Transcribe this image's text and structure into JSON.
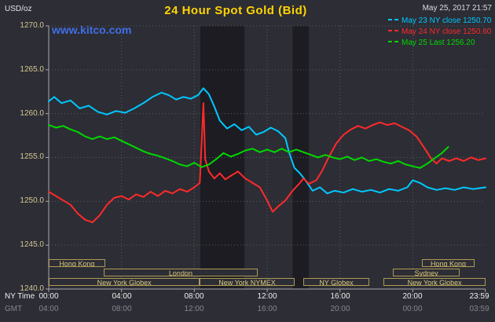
{
  "header": {
    "title": "24 Hour Spot Gold (Bid)",
    "datetime": "May 25, 2017 21:57",
    "unit_label": "USD/oz",
    "watermark": "www.kitco.com"
  },
  "legend": {
    "entries": [
      {
        "label": "May 23 NY close 1250.70",
        "color": "#00c8ff"
      },
      {
        "label": "May 24 NY close 1250.60",
        "color": "#ff2a2a"
      },
      {
        "label": "May 25 Last 1256.20",
        "color": "#00d800"
      }
    ],
    "position": "top-right"
  },
  "axes": {
    "y_ticks": [
      "1270.0",
      "1265.0",
      "1260.0",
      "1255.0",
      "1250.0",
      "1245.0",
      "1240.0"
    ],
    "x_ticks_ny": [
      "00:00",
      "04:00",
      "08:00",
      "12:00",
      "16:00",
      "20:00",
      "23:59"
    ],
    "x_ticks_gmt": [
      "04:00",
      "08:00",
      "12:00",
      "16:00",
      "20:00",
      "00:00",
      "03:59"
    ],
    "x_caption_ny": "NY Time",
    "x_caption_gmt": "GMT"
  },
  "sessions": [
    {
      "label": "Hong Kong",
      "row": 0,
      "start": 0.0,
      "end": 3.1
    },
    {
      "label": "Hong Kong",
      "row": 0,
      "start": 20.5,
      "end": 23.4
    },
    {
      "label": "London",
      "row": 1,
      "start": 3.0,
      "end": 11.5
    },
    {
      "label": "Sydney",
      "row": 1,
      "start": 18.9,
      "end": 22.6
    },
    {
      "label": "New York Globex",
      "row": 2,
      "start": 0.0,
      "end": 8.3
    },
    {
      "label": "New York NYMEX",
      "row": 2,
      "start": 8.3,
      "end": 13.5
    },
    {
      "label": "NY Globex",
      "row": 2,
      "start": 14.0,
      "end": 17.6
    },
    {
      "label": "New York Globex",
      "row": 2,
      "start": 18.4,
      "end": 24.0
    }
  ],
  "colors": {
    "background": "#2d2d35",
    "shaded_band": "#1c1c22",
    "grid": "#5a5a64",
    "axis": "#a8a8b0",
    "y_tick_label": "#d2c893",
    "x_tick_label_ny": "#efefef",
    "x_tick_label_gmt": "#86868e",
    "session": "#c9b96a",
    "title": "#ffd400",
    "watermark": "#3f6fe8"
  },
  "chart_data": {
    "type": "line",
    "title": "24 Hour Spot Gold (Bid)",
    "ylabel": "USD/oz",
    "xlabel": "NY Time (hours)",
    "xlim": [
      0,
      24
    ],
    "ylim": [
      1240,
      1270
    ],
    "grid": true,
    "x_gridline_hours": [
      0,
      4,
      8,
      12,
      16,
      20
    ],
    "y_gridline_step": 5,
    "shaded_bands_x": [
      [
        8.33,
        10.75
      ],
      [
        13.4,
        14.3
      ]
    ],
    "series": [
      {
        "name": "May 23",
        "close_label": "NY close 1250.70",
        "close": 1250.7,
        "color": "#00c8ff",
        "points": [
          [
            0,
            1261.4
          ],
          [
            0.3,
            1261.9
          ],
          [
            0.7,
            1261.2
          ],
          [
            1.2,
            1261.5
          ],
          [
            1.7,
            1260.6
          ],
          [
            2.2,
            1260.9
          ],
          [
            2.7,
            1260.2
          ],
          [
            3.2,
            1259.9
          ],
          [
            3.7,
            1260.3
          ],
          [
            4.2,
            1260.1
          ],
          [
            4.7,
            1260.6
          ],
          [
            5.2,
            1261.2
          ],
          [
            5.7,
            1261.9
          ],
          [
            6.2,
            1262.4
          ],
          [
            6.6,
            1262.1
          ],
          [
            7.0,
            1261.6
          ],
          [
            7.4,
            1261.9
          ],
          [
            7.8,
            1261.7
          ],
          [
            8.2,
            1262.1
          ],
          [
            8.5,
            1262.9
          ],
          [
            8.8,
            1262.2
          ],
          [
            9.1,
            1260.8
          ],
          [
            9.4,
            1259.2
          ],
          [
            9.8,
            1258.3
          ],
          [
            10.2,
            1258.8
          ],
          [
            10.6,
            1258.1
          ],
          [
            11.0,
            1258.5
          ],
          [
            11.4,
            1257.6
          ],
          [
            11.8,
            1257.9
          ],
          [
            12.2,
            1258.4
          ],
          [
            12.6,
            1258.0
          ],
          [
            13.0,
            1257.2
          ],
          [
            13.2,
            1255.6
          ],
          [
            13.5,
            1253.8
          ],
          [
            13.8,
            1253.2
          ],
          [
            14.1,
            1252.4
          ],
          [
            14.5,
            1251.2
          ],
          [
            14.9,
            1251.6
          ],
          [
            15.3,
            1250.9
          ],
          [
            15.7,
            1251.2
          ],
          [
            16.2,
            1251.0
          ],
          [
            16.7,
            1251.4
          ],
          [
            17.2,
            1251.1
          ],
          [
            17.7,
            1251.3
          ],
          [
            18.2,
            1251.0
          ],
          [
            18.7,
            1251.4
          ],
          [
            19.2,
            1251.2
          ],
          [
            19.7,
            1251.6
          ],
          [
            20.0,
            1252.4
          ],
          [
            20.4,
            1252.1
          ],
          [
            20.8,
            1251.6
          ],
          [
            21.3,
            1251.3
          ],
          [
            21.8,
            1251.5
          ],
          [
            22.3,
            1251.3
          ],
          [
            22.8,
            1251.6
          ],
          [
            23.3,
            1251.4
          ],
          [
            24,
            1251.6
          ]
        ]
      },
      {
        "name": "May 24",
        "close_label": "NY close 1250.60",
        "close": 1250.6,
        "color": "#ff2a2a",
        "points": [
          [
            0,
            1251.1
          ],
          [
            0.4,
            1250.6
          ],
          [
            0.8,
            1250.1
          ],
          [
            1.2,
            1249.6
          ],
          [
            1.6,
            1248.6
          ],
          [
            2.0,
            1247.9
          ],
          [
            2.4,
            1247.6
          ],
          [
            2.8,
            1248.4
          ],
          [
            3.2,
            1249.6
          ],
          [
            3.6,
            1250.4
          ],
          [
            4.0,
            1250.6
          ],
          [
            4.4,
            1250.2
          ],
          [
            4.8,
            1250.8
          ],
          [
            5.2,
            1250.5
          ],
          [
            5.6,
            1251.1
          ],
          [
            6.0,
            1250.6
          ],
          [
            6.4,
            1251.2
          ],
          [
            6.8,
            1250.9
          ],
          [
            7.2,
            1251.4
          ],
          [
            7.6,
            1251.1
          ],
          [
            8.0,
            1251.6
          ],
          [
            8.3,
            1252.1
          ],
          [
            8.5,
            1261.2
          ],
          [
            8.6,
            1254.8
          ],
          [
            8.8,
            1253.4
          ],
          [
            9.1,
            1252.6
          ],
          [
            9.4,
            1253.2
          ],
          [
            9.7,
            1252.5
          ],
          [
            10.0,
            1252.9
          ],
          [
            10.4,
            1253.4
          ],
          [
            10.8,
            1252.6
          ],
          [
            11.2,
            1252.1
          ],
          [
            11.6,
            1251.6
          ],
          [
            12.0,
            1250.1
          ],
          [
            12.3,
            1248.8
          ],
          [
            12.6,
            1249.4
          ],
          [
            13.0,
            1250.1
          ],
          [
            13.4,
            1251.2
          ],
          [
            13.8,
            1252.1
          ],
          [
            14.0,
            1252.6
          ],
          [
            14.3,
            1252.0
          ],
          [
            14.7,
            1252.4
          ],
          [
            15.0,
            1253.4
          ],
          [
            15.4,
            1255.1
          ],
          [
            15.8,
            1256.6
          ],
          [
            16.2,
            1257.6
          ],
          [
            16.6,
            1258.2
          ],
          [
            17.0,
            1258.6
          ],
          [
            17.4,
            1258.3
          ],
          [
            17.8,
            1258.7
          ],
          [
            18.2,
            1259.0
          ],
          [
            18.6,
            1258.7
          ],
          [
            19.0,
            1258.9
          ],
          [
            19.4,
            1258.5
          ],
          [
            19.8,
            1258.1
          ],
          [
            20.2,
            1257.4
          ],
          [
            20.6,
            1256.2
          ],
          [
            21.0,
            1254.9
          ],
          [
            21.3,
            1254.3
          ],
          [
            21.6,
            1254.9
          ],
          [
            22.0,
            1254.6
          ],
          [
            22.4,
            1254.9
          ],
          [
            22.8,
            1254.6
          ],
          [
            23.2,
            1255.0
          ],
          [
            23.6,
            1254.7
          ],
          [
            24,
            1254.9
          ]
        ]
      },
      {
        "name": "May 25",
        "close_label": "Last 1256.20",
        "last": 1256.2,
        "color": "#00d800",
        "points": [
          [
            0,
            1258.7
          ],
          [
            0.4,
            1258.4
          ],
          [
            0.8,
            1258.6
          ],
          [
            1.2,
            1258.2
          ],
          [
            1.6,
            1257.9
          ],
          [
            2.0,
            1257.4
          ],
          [
            2.4,
            1257.1
          ],
          [
            2.8,
            1257.4
          ],
          [
            3.2,
            1257.1
          ],
          [
            3.6,
            1257.3
          ],
          [
            4.0,
            1256.9
          ],
          [
            4.4,
            1256.5
          ],
          [
            4.8,
            1256.1
          ],
          [
            5.2,
            1255.7
          ],
          [
            5.6,
            1255.4
          ],
          [
            6.0,
            1255.2
          ],
          [
            6.4,
            1254.9
          ],
          [
            6.8,
            1254.6
          ],
          [
            7.2,
            1254.2
          ],
          [
            7.6,
            1254.0
          ],
          [
            8.0,
            1254.4
          ],
          [
            8.4,
            1253.9
          ],
          [
            8.8,
            1254.2
          ],
          [
            9.2,
            1254.8
          ],
          [
            9.6,
            1255.5
          ],
          [
            10.0,
            1255.1
          ],
          [
            10.4,
            1255.4
          ],
          [
            10.8,
            1255.8
          ],
          [
            11.2,
            1256.0
          ],
          [
            11.6,
            1255.6
          ],
          [
            12.0,
            1255.9
          ],
          [
            12.4,
            1255.6
          ],
          [
            12.8,
            1256.0
          ],
          [
            13.2,
            1255.6
          ],
          [
            13.6,
            1255.9
          ],
          [
            14.0,
            1255.6
          ],
          [
            14.4,
            1255.3
          ],
          [
            14.8,
            1255.0
          ],
          [
            15.2,
            1255.3
          ],
          [
            15.6,
            1255.0
          ],
          [
            16.0,
            1254.8
          ],
          [
            16.4,
            1255.1
          ],
          [
            16.8,
            1254.7
          ],
          [
            17.2,
            1255.0
          ],
          [
            17.6,
            1254.6
          ],
          [
            18.0,
            1254.8
          ],
          [
            18.4,
            1254.5
          ],
          [
            18.8,
            1254.3
          ],
          [
            19.2,
            1254.6
          ],
          [
            19.6,
            1254.2
          ],
          [
            20.0,
            1254.0
          ],
          [
            20.4,
            1253.8
          ],
          [
            20.8,
            1254.3
          ],
          [
            21.2,
            1254.9
          ],
          [
            21.6,
            1255.5
          ],
          [
            21.95,
            1256.2
          ]
        ]
      }
    ]
  }
}
